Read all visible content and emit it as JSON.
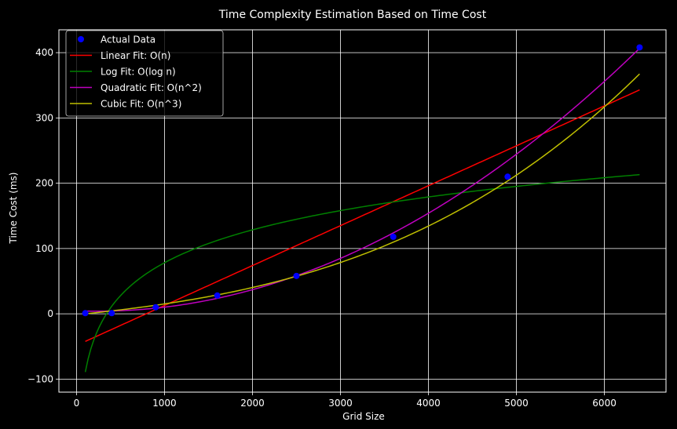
{
  "chart_data": {
    "type": "line",
    "title": "Time Complexity Estimation Based on Time Cost",
    "xlabel": "Grid Size",
    "ylabel": "Time Cost (ms)",
    "xlim": [
      -200,
      6700
    ],
    "ylim": [
      -120,
      435
    ],
    "xticks": [
      0,
      1000,
      2000,
      3000,
      4000,
      5000,
      6000
    ],
    "yticks": [
      -100,
      0,
      100,
      200,
      300,
      400
    ],
    "grid": true,
    "legend_position": "top-left",
    "background": "#000000",
    "actual": {
      "name": "Actual Data",
      "color": "#0000ff",
      "x": [
        100,
        400,
        900,
        1600,
        2500,
        3600,
        4900,
        6400
      ],
      "y": [
        1,
        1,
        10,
        28,
        58,
        118,
        210,
        408
      ]
    },
    "fits": [
      {
        "name": "Linear Fit: O(n)",
        "color": "#ff0000",
        "model": "linear",
        "coef": [
          0.06115,
          -48.4
        ]
      },
      {
        "name": "Log Fit: O(log n)",
        "color": "#008000",
        "model": "log",
        "coef": [
          72.7,
          -424
        ]
      },
      {
        "name": "Quadratic Fit: O(n^2)",
        "color": "#bf00bf",
        "model": "quadratic",
        "coef": [
          1.06e-05,
          -0.00503,
          4.6
        ]
      },
      {
        "name": "Cubic Fit: O(n^3)",
        "color": "#bfbf00",
        "model": "cubic",
        "coef": [
          7.53e-10,
          2.03e-06,
          0.0138,
          -1.45
        ]
      }
    ],
    "x_range": [
      100,
      6400
    ]
  }
}
